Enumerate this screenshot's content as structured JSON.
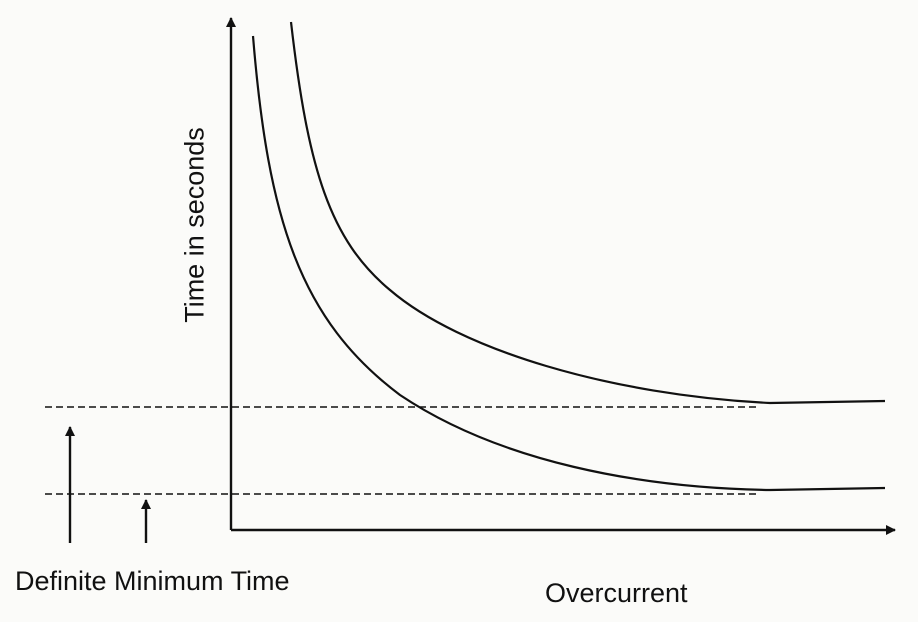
{
  "labels": {
    "y_axis": "Time in seconds",
    "x_axis": "Overcurrent",
    "definite_minimum_time": "Definite Minimum Time"
  },
  "colors": {
    "ink": "#111111",
    "background": "#fbfbf9"
  }
}
